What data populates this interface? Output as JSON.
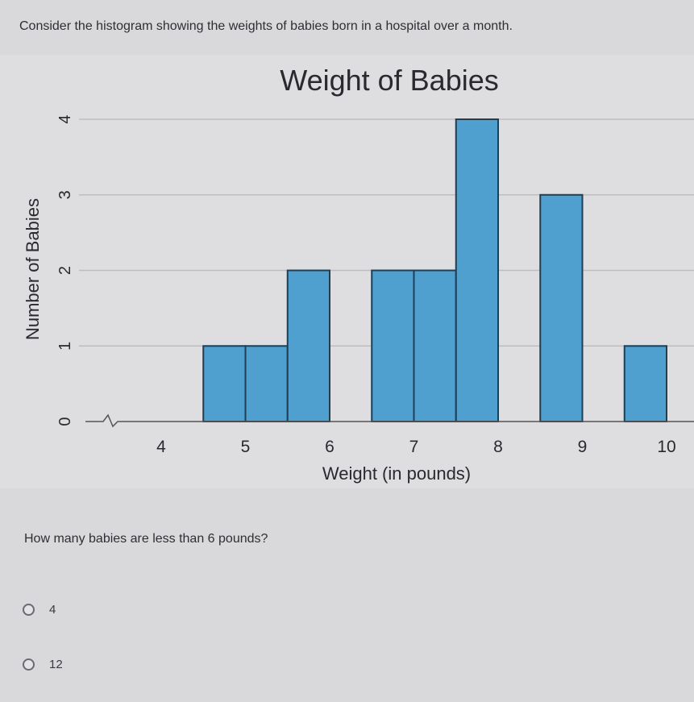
{
  "prompt": "Consider the histogram showing the weights of babies born in a hospital over a month.",
  "question": "How many babies are less than 6 pounds?",
  "options": [
    {
      "label": "4"
    },
    {
      "label": "12"
    }
  ],
  "colors": {
    "bar_fill": "#4f9fcf",
    "bar_stroke": "#1f3f55",
    "grid": "#bdbdbd"
  },
  "chart_data": {
    "type": "bar",
    "title": "Weight of Babies",
    "xlabel": "Weight (in pounds)",
    "ylabel": "Number of Babies",
    "xlim": [
      3.5,
      10
    ],
    "ylim": [
      0,
      4
    ],
    "x_ticks": [
      "4",
      "5",
      "6",
      "7",
      "8",
      "9",
      "10"
    ],
    "y_ticks": [
      "0",
      "1",
      "2",
      "3",
      "4"
    ],
    "grid": true,
    "axis_break": true,
    "bin_width": 0.5,
    "bins": [
      {
        "start": 4.5,
        "end": 5.0,
        "count": 1
      },
      {
        "start": 5.0,
        "end": 5.5,
        "count": 1
      },
      {
        "start": 5.5,
        "end": 6.0,
        "count": 2
      },
      {
        "start": 6.5,
        "end": 7.0,
        "count": 2
      },
      {
        "start": 7.0,
        "end": 7.5,
        "count": 2
      },
      {
        "start": 7.5,
        "end": 8.0,
        "count": 4
      },
      {
        "start": 8.5,
        "end": 9.0,
        "count": 3
      },
      {
        "start": 9.5,
        "end": 10.0,
        "count": 1
      }
    ]
  }
}
